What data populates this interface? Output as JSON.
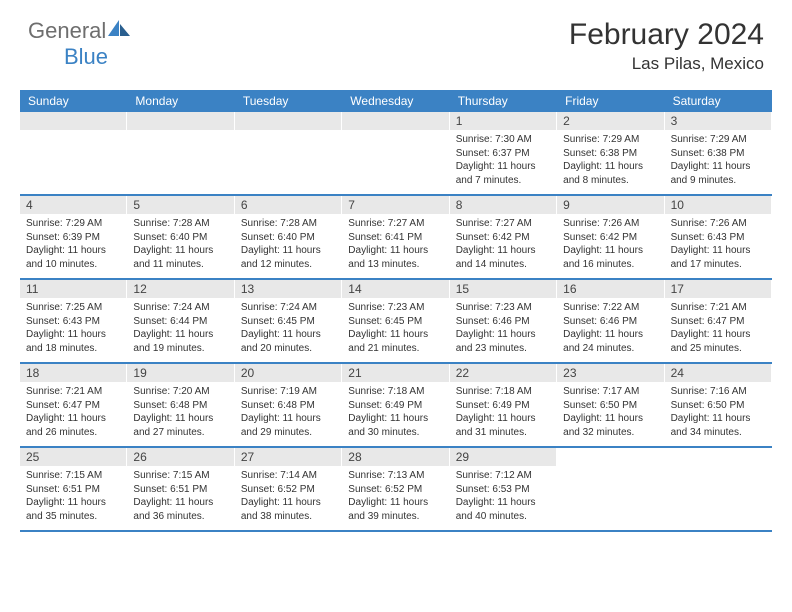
{
  "logo": {
    "text1": "General",
    "text2": "Blue"
  },
  "title": "February 2024",
  "location": "Las Pilas, Mexico",
  "day_names": [
    "Sunday",
    "Monday",
    "Tuesday",
    "Wednesday",
    "Thursday",
    "Friday",
    "Saturday"
  ],
  "colors": {
    "header_bg": "#3b82c4",
    "number_row_bg": "#e8e8e8",
    "week_border": "#3b82c4"
  },
  "weeks": [
    [
      null,
      null,
      null,
      null,
      {
        "n": "1",
        "sr": "7:30 AM",
        "ss": "6:37 PM",
        "d1": "11 hours",
        "d2": "and 7 minutes."
      },
      {
        "n": "2",
        "sr": "7:29 AM",
        "ss": "6:38 PM",
        "d1": "11 hours",
        "d2": "and 8 minutes."
      },
      {
        "n": "3",
        "sr": "7:29 AM",
        "ss": "6:38 PM",
        "d1": "11 hours",
        "d2": "and 9 minutes."
      }
    ],
    [
      {
        "n": "4",
        "sr": "7:29 AM",
        "ss": "6:39 PM",
        "d1": "11 hours",
        "d2": "and 10 minutes."
      },
      {
        "n": "5",
        "sr": "7:28 AM",
        "ss": "6:40 PM",
        "d1": "11 hours",
        "d2": "and 11 minutes."
      },
      {
        "n": "6",
        "sr": "7:28 AM",
        "ss": "6:40 PM",
        "d1": "11 hours",
        "d2": "and 12 minutes."
      },
      {
        "n": "7",
        "sr": "7:27 AM",
        "ss": "6:41 PM",
        "d1": "11 hours",
        "d2": "and 13 minutes."
      },
      {
        "n": "8",
        "sr": "7:27 AM",
        "ss": "6:42 PM",
        "d1": "11 hours",
        "d2": "and 14 minutes."
      },
      {
        "n": "9",
        "sr": "7:26 AM",
        "ss": "6:42 PM",
        "d1": "11 hours",
        "d2": "and 16 minutes."
      },
      {
        "n": "10",
        "sr": "7:26 AM",
        "ss": "6:43 PM",
        "d1": "11 hours",
        "d2": "and 17 minutes."
      }
    ],
    [
      {
        "n": "11",
        "sr": "7:25 AM",
        "ss": "6:43 PM",
        "d1": "11 hours",
        "d2": "and 18 minutes."
      },
      {
        "n": "12",
        "sr": "7:24 AM",
        "ss": "6:44 PM",
        "d1": "11 hours",
        "d2": "and 19 minutes."
      },
      {
        "n": "13",
        "sr": "7:24 AM",
        "ss": "6:45 PM",
        "d1": "11 hours",
        "d2": "and 20 minutes."
      },
      {
        "n": "14",
        "sr": "7:23 AM",
        "ss": "6:45 PM",
        "d1": "11 hours",
        "d2": "and 21 minutes."
      },
      {
        "n": "15",
        "sr": "7:23 AM",
        "ss": "6:46 PM",
        "d1": "11 hours",
        "d2": "and 23 minutes."
      },
      {
        "n": "16",
        "sr": "7:22 AM",
        "ss": "6:46 PM",
        "d1": "11 hours",
        "d2": "and 24 minutes."
      },
      {
        "n": "17",
        "sr": "7:21 AM",
        "ss": "6:47 PM",
        "d1": "11 hours",
        "d2": "and 25 minutes."
      }
    ],
    [
      {
        "n": "18",
        "sr": "7:21 AM",
        "ss": "6:47 PM",
        "d1": "11 hours",
        "d2": "and 26 minutes."
      },
      {
        "n": "19",
        "sr": "7:20 AM",
        "ss": "6:48 PM",
        "d1": "11 hours",
        "d2": "and 27 minutes."
      },
      {
        "n": "20",
        "sr": "7:19 AM",
        "ss": "6:48 PM",
        "d1": "11 hours",
        "d2": "and 29 minutes."
      },
      {
        "n": "21",
        "sr": "7:18 AM",
        "ss": "6:49 PM",
        "d1": "11 hours",
        "d2": "and 30 minutes."
      },
      {
        "n": "22",
        "sr": "7:18 AM",
        "ss": "6:49 PM",
        "d1": "11 hours",
        "d2": "and 31 minutes."
      },
      {
        "n": "23",
        "sr": "7:17 AM",
        "ss": "6:50 PM",
        "d1": "11 hours",
        "d2": "and 32 minutes."
      },
      {
        "n": "24",
        "sr": "7:16 AM",
        "ss": "6:50 PM",
        "d1": "11 hours",
        "d2": "and 34 minutes."
      }
    ],
    [
      {
        "n": "25",
        "sr": "7:15 AM",
        "ss": "6:51 PM",
        "d1": "11 hours",
        "d2": "and 35 minutes."
      },
      {
        "n": "26",
        "sr": "7:15 AM",
        "ss": "6:51 PM",
        "d1": "11 hours",
        "d2": "and 36 minutes."
      },
      {
        "n": "27",
        "sr": "7:14 AM",
        "ss": "6:52 PM",
        "d1": "11 hours",
        "d2": "and 38 minutes."
      },
      {
        "n": "28",
        "sr": "7:13 AM",
        "ss": "6:52 PM",
        "d1": "11 hours",
        "d2": "and 39 minutes."
      },
      {
        "n": "29",
        "sr": "7:12 AM",
        "ss": "6:53 PM",
        "d1": "11 hours",
        "d2": "and 40 minutes."
      },
      null,
      null
    ]
  ],
  "labels": {
    "sunrise": "Sunrise: ",
    "sunset": "Sunset: ",
    "daylight": "Daylight: "
  }
}
